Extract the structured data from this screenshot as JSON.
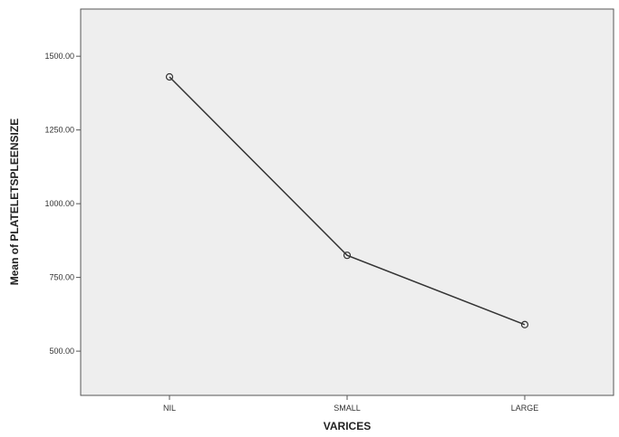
{
  "chart_data": {
    "type": "line",
    "title": "",
    "xlabel": "VARICES",
    "ylabel": "Mean of PLATELETSPLEENSIZE",
    "categories": [
      "NIL",
      "SMALL",
      "LARGE"
    ],
    "series": [
      {
        "values": [
          1430,
          825,
          590
        ]
      }
    ],
    "ylim": [
      350,
      1660
    ],
    "yticks": [
      500,
      750,
      1000,
      1250,
      1500
    ],
    "ytick_labels": [
      "500.00",
      "750.00",
      "1000.00",
      "1250.00",
      "1500.00"
    ],
    "grid": false,
    "legend": "none",
    "marker": "open-circle",
    "colors": {
      "plot_background": "#eeeeee",
      "line": "#333333",
      "frame": "#555555",
      "page_background": "#ffffff"
    }
  }
}
